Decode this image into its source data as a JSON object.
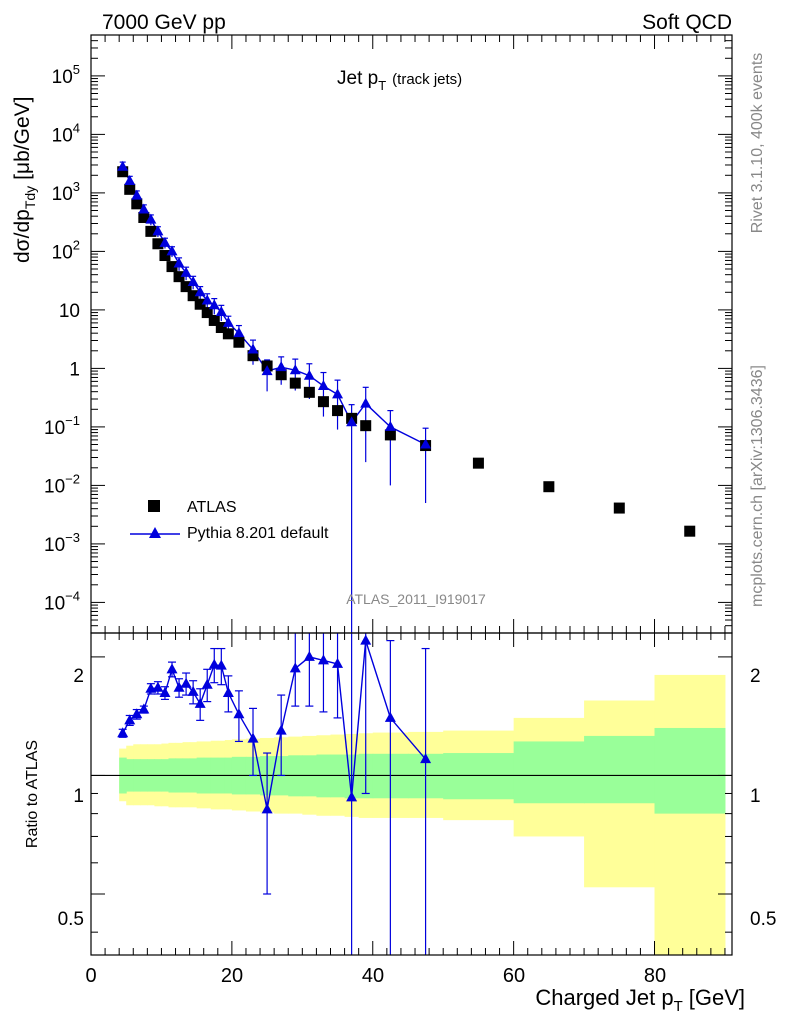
{
  "header": {
    "left": "7000 GeV pp",
    "right": "Soft QCD"
  },
  "side": {
    "rivet": "Rivet 3.1.10,  400k events",
    "mcplots": "mcplots.cern.ch [arXiv:1306.3436]"
  },
  "top_panel": {
    "title_main": "Jet p",
    "title_sub": "T",
    "title_note": "(track jets)",
    "ylabel": "dσ/dp",
    "ylabel_sub": "Tdy",
    "ylabel_unit": "[μb/GeV]",
    "watermark": "ATLAS_2011_I919017",
    "y_tick_labels": [
      {
        "base": "10",
        "exp": "−4",
        "value": 0.0001
      },
      {
        "base": "10",
        "exp": "−3",
        "value": 0.001
      },
      {
        "base": "10",
        "exp": "−2",
        "value": 0.01
      },
      {
        "base": "10",
        "exp": "−1",
        "value": 0.1
      },
      {
        "base": "1",
        "exp": "",
        "value": 1
      },
      {
        "base": "10",
        "exp": "",
        "value": 10
      },
      {
        "base": "10",
        "exp": "2",
        "value": 100
      },
      {
        "base": "10",
        "exp": "3",
        "value": 1000
      },
      {
        "base": "10",
        "exp": "4",
        "value": 10000
      },
      {
        "base": "10",
        "exp": "5",
        "value": 100000
      }
    ]
  },
  "bottom_panel": {
    "ylabel": "Ratio to ATLAS",
    "y_tick_labels": [
      "0.5",
      "1",
      "2"
    ],
    "x_tick_labels": [
      "0",
      "20",
      "40",
      "60",
      "80"
    ],
    "xlabel_main": "Charged Jet p",
    "xlabel_sub": "T",
    "xlabel_unit": "[GeV]"
  },
  "legend": {
    "atlas": "ATLAS",
    "pythia": "Pythia 8.201 default"
  },
  "colors": {
    "data": "#000000",
    "mc": "#0000dd",
    "band_inner": "#99ff99",
    "band_outer": "#ffff99"
  },
  "chart_data": [
    {
      "type": "scatter",
      "title": "Jet pT (track jets)",
      "xlabel": "Charged Jet pT [GeV]",
      "ylabel": "dσ/dpTdy [μb/GeV]",
      "xlim": [
        0,
        91
      ],
      "ylim": [
        3e-05,
        500000.0
      ],
      "y_scale": "log",
      "legend_position": "bottom-left",
      "series": [
        {
          "name": "ATLAS",
          "x": [
            4.5,
            5.5,
            6.5,
            7.5,
            8.5,
            9.5,
            10.5,
            11.5,
            12.5,
            13.5,
            14.5,
            15.5,
            16.5,
            17.5,
            18.5,
            19.5,
            21,
            23,
            25,
            27,
            29,
            31,
            33,
            35,
            37,
            39,
            42.5,
            47.5,
            55,
            65,
            75,
            85
          ],
          "y": [
            2300,
            1150,
            650,
            380,
            220,
            135,
            85,
            55,
            37,
            25,
            17.5,
            12.5,
            9,
            6.6,
            5,
            3.9,
            2.8,
            1.65,
            1.1,
            0.78,
            0.56,
            0.39,
            0.27,
            0.19,
            0.14,
            0.105,
            0.073,
            0.048,
            0.024,
            0.0095,
            0.0041,
            0.00165
          ]
        },
        {
          "name": "Pythia 8.201 default",
          "x": [
            4.5,
            5.5,
            6.5,
            7.5,
            8.5,
            9.5,
            10.5,
            11.5,
            12.5,
            13.5,
            14.5,
            15.5,
            16.5,
            17.5,
            18.5,
            19.5,
            21,
            23,
            25,
            27,
            29,
            31,
            33,
            35,
            37,
            39,
            42.5,
            47.5
          ],
          "y": [
            2800,
            1600,
            900,
            520,
            350,
            220,
            140,
            100,
            62,
            43,
            30,
            20,
            14.5,
            12,
            9.2,
            6,
            4,
            2.1,
            0.9,
            1.05,
            0.93,
            0.75,
            0.5,
            0.36,
            0.12,
            0.25,
            0.1,
            0.05
          ],
          "y_err": [
            0.2,
            0.2,
            0.2,
            0.2,
            0.2,
            0.2,
            0.2,
            0.2,
            0.25,
            0.25,
            0.25,
            0.25,
            0.3,
            0.3,
            0.3,
            0.3,
            0.35,
            0.45,
            0.55,
            0.5,
            0.55,
            0.6,
            0.7,
            0.75,
            1,
            0.9,
            0.9,
            0.9
          ]
        }
      ]
    },
    {
      "type": "scatter",
      "ylabel": "Ratio to ATLAS",
      "xlabel": "Charged Jet pT [GeV]",
      "xlim": [
        0,
        91
      ],
      "ylim": [
        0.35,
        2.3
      ],
      "y_scale": "log",
      "bands": {
        "edges": [
          4,
          5,
          6,
          7,
          8,
          9,
          10,
          11,
          12,
          13,
          14,
          15,
          16,
          17,
          18,
          19,
          20,
          22,
          24,
          26,
          28,
          30,
          32,
          34,
          36,
          38,
          40,
          45,
          50,
          60,
          70,
          80,
          90
        ],
        "inner_low": [
          0.9,
          0.91,
          0.91,
          0.91,
          0.91,
          0.91,
          0.91,
          0.905,
          0.905,
          0.905,
          0.905,
          0.9,
          0.9,
          0.9,
          0.9,
          0.9,
          0.895,
          0.895,
          0.89,
          0.89,
          0.885,
          0.885,
          0.88,
          0.88,
          0.875,
          0.875,
          0.875,
          0.875,
          0.87,
          0.85,
          0.85,
          0.8,
          0.35
        ],
        "inner_high": [
          1.11,
          1.1,
          1.1,
          1.1,
          1.1,
          1.1,
          1.1,
          1.105,
          1.105,
          1.105,
          1.105,
          1.11,
          1.11,
          1.11,
          1.11,
          1.11,
          1.115,
          1.115,
          1.12,
          1.12,
          1.125,
          1.125,
          1.13,
          1.13,
          1.13,
          1.135,
          1.135,
          1.135,
          1.14,
          1.22,
          1.26,
          1.32,
          1.65
        ],
        "outer_low": [
          0.86,
          0.84,
          0.84,
          0.84,
          0.84,
          0.835,
          0.835,
          0.83,
          0.83,
          0.83,
          0.83,
          0.825,
          0.825,
          0.82,
          0.82,
          0.82,
          0.815,
          0.81,
          0.805,
          0.8,
          0.8,
          0.795,
          0.79,
          0.79,
          0.785,
          0.78,
          0.78,
          0.78,
          0.77,
          0.7,
          0.52,
          0.35,
          0.35
        ],
        "outer_high": [
          1.17,
          1.19,
          1.2,
          1.2,
          1.2,
          1.2,
          1.205,
          1.21,
          1.21,
          1.215,
          1.215,
          1.22,
          1.22,
          1.225,
          1.225,
          1.23,
          1.235,
          1.24,
          1.245,
          1.25,
          1.255,
          1.26,
          1.265,
          1.27,
          1.275,
          1.28,
          1.285,
          1.29,
          1.3,
          1.4,
          1.55,
          1.8,
          2.1
        ]
      },
      "series": [
        {
          "name": "Pythia 8.201 default",
          "x": [
            4.5,
            5.5,
            6.5,
            7.5,
            8.5,
            9.5,
            10.5,
            11.5,
            12.5,
            13.5,
            14.5,
            15.5,
            16.5,
            17.5,
            18.5,
            19.5,
            21,
            23,
            25,
            27,
            29,
            31,
            33,
            35,
            37,
            39,
            42.5,
            47.5
          ],
          "y": [
            1.28,
            1.38,
            1.43,
            1.47,
            1.66,
            1.67,
            1.62,
            1.86,
            1.67,
            1.71,
            1.63,
            1.52,
            1.7,
            1.91,
            1.9,
            1.62,
            1.43,
            1.24,
            0.82,
            1.3,
            1.87,
            2.0,
            1.96,
            1.92,
            0.88,
            2.2,
            1.4,
            1.1
          ],
          "y_low": [
            1.25,
            1.34,
            1.39,
            1.44,
            1.61,
            1.61,
            1.56,
            1.78,
            1.58,
            1.6,
            1.52,
            1.38,
            1.54,
            1.72,
            1.7,
            1.45,
            1.22,
            1.0,
            0.5,
            1.0,
            1.5,
            1.5,
            1.45,
            1.4,
            0.3,
            0.9,
            0.3,
            0.3
          ],
          "y_high": [
            1.31,
            1.42,
            1.47,
            1.5,
            1.71,
            1.73,
            1.68,
            1.94,
            1.76,
            1.82,
            1.74,
            1.66,
            1.86,
            2.1,
            2.1,
            1.79,
            1.64,
            1.48,
            1.14,
            1.6,
            2.3,
            2.3,
            2.3,
            2.3,
            2.3,
            2.3,
            2.2,
            2.1
          ]
        }
      ]
    }
  ]
}
